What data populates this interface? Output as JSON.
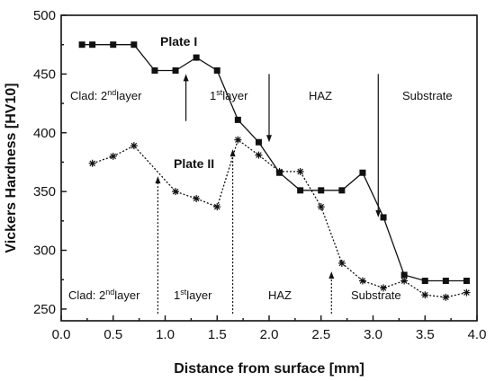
{
  "chart_data": {
    "type": "line",
    "title": "",
    "xlabel": "Distance from surface [mm]",
    "ylabel": "Vickers Hardness [HV10]",
    "xlim": [
      0.0,
      4.0
    ],
    "ylim": [
      240,
      500
    ],
    "xticks": [
      "0.0",
      "0.5",
      "1.0",
      "1.5",
      "2.0",
      "2.5",
      "3.0",
      "3.5",
      "4.0"
    ],
    "yticks": [
      "250",
      "300",
      "350",
      "400",
      "450",
      "500"
    ],
    "grid": false,
    "series": [
      {
        "name": "Plate I",
        "marker": "square",
        "line": "solid",
        "x": [
          0.2,
          0.3,
          0.5,
          0.7,
          0.9,
          1.1,
          1.3,
          1.5,
          1.7,
          1.9,
          2.1,
          2.3,
          2.5,
          2.7,
          2.9,
          3.1,
          3.3,
          3.5,
          3.7,
          3.9
        ],
        "y": [
          475,
          475,
          475,
          475,
          453,
          453,
          464,
          453,
          411,
          392,
          366,
          351,
          351,
          351,
          366,
          328,
          279,
          274,
          274,
          274
        ]
      },
      {
        "name": "Plate II",
        "marker": "star",
        "line": "dotted",
        "x": [
          0.3,
          0.5,
          0.7,
          1.1,
          1.3,
          1.5,
          1.7,
          1.9,
          2.1,
          2.3,
          2.5,
          2.7,
          2.9,
          3.1,
          3.3,
          3.5,
          3.7,
          3.9
        ],
        "y": [
          374,
          380,
          389,
          350,
          344,
          337,
          394,
          381,
          367,
          367,
          337,
          289,
          274,
          268,
          274,
          262,
          260,
          264
        ]
      }
    ],
    "annotations": {
      "plate1_regions": [
        {
          "main": "Clad: 2",
          "sup": "nd",
          "rest": "layer"
        },
        {
          "main": "1",
          "sup": "st",
          "rest": "layer"
        },
        {
          "main": "HAZ",
          "sup": "",
          "rest": ""
        },
        {
          "main": "Substrate",
          "sup": "",
          "rest": ""
        }
      ],
      "plate2_regions": [
        {
          "main": "Clad: 2",
          "sup": "nd",
          "rest": "layer"
        },
        {
          "main": "1",
          "sup": "st",
          "rest": "layer"
        },
        {
          "main": "HAZ",
          "sup": "",
          "rest": ""
        },
        {
          "main": "Substrate",
          "sup": "",
          "rest": ""
        }
      ],
      "plate1_arrows": [
        {
          "x": 1.2,
          "from": 410,
          "to": 450
        },
        {
          "x": 2.0,
          "from": 450,
          "to": 392
        },
        {
          "x": 3.05,
          "from": 450,
          "to": 328
        }
      ],
      "plate2_arrows": [
        {
          "x": 0.93,
          "from": 246,
          "to": 363
        },
        {
          "x": 1.65,
          "from": 246,
          "to": 386
        },
        {
          "x": 2.6,
          "from": 246,
          "to": 282
        }
      ]
    }
  }
}
